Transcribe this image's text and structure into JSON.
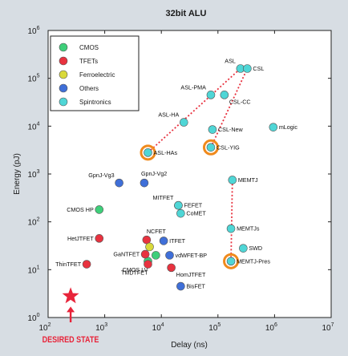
{
  "chart_data": {
    "type": "scatter",
    "title": "32bit ALU",
    "xlabel": "Delay (ns)",
    "ylabel": "Energy (pJ)",
    "x_scale": "log",
    "y_scale": "log",
    "xlim": [
      100,
      10000000
    ],
    "ylim": [
      1,
      1000000
    ],
    "x_ticks": [
      {
        "value": 100,
        "base": "10",
        "exp": "2"
      },
      {
        "value": 1000,
        "base": "10",
        "exp": "3"
      },
      {
        "value": 10000,
        "base": "10",
        "exp": "4"
      },
      {
        "value": 100000,
        "base": "10",
        "exp": "5"
      },
      {
        "value": 1000000,
        "base": "10",
        "exp": "6"
      },
      {
        "value": 10000000,
        "base": "10",
        "exp": "7"
      }
    ],
    "y_ticks": [
      {
        "value": 1,
        "base": "10",
        "exp": "0"
      },
      {
        "value": 10,
        "base": "10",
        "exp": "1"
      },
      {
        "value": 100,
        "base": "10",
        "exp": "2"
      },
      {
        "value": 1000,
        "base": "10",
        "exp": "3"
      },
      {
        "value": 10000,
        "base": "10",
        "exp": "4"
      },
      {
        "value": 100000,
        "base": "10",
        "exp": "5"
      },
      {
        "value": 1000000,
        "base": "10",
        "exp": "6"
      }
    ],
    "grid": false,
    "legend_position": "top-left",
    "series": [
      {
        "name": "CMOS",
        "color": "#3ecf7a"
      },
      {
        "name": "TFETs",
        "color": "#e8323f"
      },
      {
        "name": "Ferroelectric",
        "color": "#d9d93a"
      },
      {
        "name": "Others",
        "color": "#3f6fd8"
      },
      {
        "name": "Spintronics",
        "color": "#4fd6d6"
      }
    ],
    "points": [
      {
        "label": "CMOS HP",
        "series": "CMOS",
        "x": 800,
        "y": 180,
        "label_pos": "left"
      },
      {
        "label": "",
        "series": "CMOS",
        "x": 8000,
        "y": 20,
        "label_pos": "none"
      },
      {
        "label": "CMOS LV",
        "series": "CMOS",
        "x": 5800,
        "y": 15,
        "label_pos": "below-left"
      },
      {
        "label": "HetJTFET",
        "series": "TFETs",
        "x": 800,
        "y": 45,
        "label_pos": "left"
      },
      {
        "label": "ThinTFET",
        "series": "TFETs",
        "x": 480,
        "y": 13,
        "label_pos": "left"
      },
      {
        "label": "NCFET",
        "series": "TFETs",
        "x": 5500,
        "y": 42,
        "label_pos": "top-center"
      },
      {
        "label": "GaNTFET",
        "series": "TFETs",
        "x": 5200,
        "y": 21,
        "label_pos": "left"
      },
      {
        "label": "TMDTFET",
        "series": "TFETs",
        "x": 5800,
        "y": 13,
        "label_pos": "below-left"
      },
      {
        "label": "HomJTFET",
        "series": "TFETs",
        "x": 15000,
        "y": 11,
        "label_pos": "right-below"
      },
      {
        "label": "MITFET",
        "series": "Ferroelectric",
        "x": 20000,
        "y": 220,
        "label_pos": "top-left"
      },
      {
        "label": "",
        "series": "Ferroelectric",
        "x": 6200,
        "y": 30,
        "label_pos": "none"
      },
      {
        "label": "GpnJ-Vg3",
        "series": "Others",
        "x": 1800,
        "y": 650,
        "label_pos": "top-left"
      },
      {
        "label": "GpnJ-Vg2",
        "series": "Others",
        "x": 5000,
        "y": 650,
        "label_pos": "top-right"
      },
      {
        "label": "ITFET",
        "series": "Others",
        "x": 11000,
        "y": 40,
        "label_pos": "right"
      },
      {
        "label": "vdWFET-BP",
        "series": "Others",
        "x": 14000,
        "y": 20,
        "label_pos": "right"
      },
      {
        "label": "BisFET",
        "series": "Others",
        "x": 22000,
        "y": 4.5,
        "label_pos": "right"
      },
      {
        "label": "FEFET",
        "series": "Spintronics",
        "x": 20000,
        "y": 220,
        "label_pos": "right"
      },
      {
        "label": "CoMET",
        "series": "Spintronics",
        "x": 22000,
        "y": 150,
        "label_pos": "right"
      },
      {
        "label": "ASL",
        "series": "Spintronics",
        "x": 250000,
        "y": 160000,
        "label_pos": "top-left"
      },
      {
        "label": "CSL",
        "series": "Spintronics",
        "x": 330000,
        "y": 160000,
        "label_pos": "right"
      },
      {
        "label": "ASL-PMA",
        "series": "Spintronics",
        "x": 75000,
        "y": 45000,
        "label_pos": "top-left"
      },
      {
        "label": "CSL-CC",
        "series": "Spintronics",
        "x": 130000,
        "y": 45000,
        "label_pos": "right-below"
      },
      {
        "label": "ASL-HA",
        "series": "Spintronics",
        "x": 25000,
        "y": 12000,
        "label_pos": "top-left"
      },
      {
        "label": "CSL-New",
        "series": "Spintronics",
        "x": 80000,
        "y": 8500,
        "label_pos": "right"
      },
      {
        "label": "CSL-YIG",
        "series": "Spintronics",
        "x": 75000,
        "y": 3600,
        "label_pos": "right",
        "highlight": true
      },
      {
        "label": "ASL-HAs",
        "series": "Spintronics",
        "x": 5800,
        "y": 2800,
        "label_pos": "right",
        "highlight": true
      },
      {
        "label": "mLogic",
        "series": "Spintronics",
        "x": 950000,
        "y": 9500,
        "label_pos": "right"
      },
      {
        "label": "MEMTJ",
        "series": "Spintronics",
        "x": 180000,
        "y": 750,
        "label_pos": "right"
      },
      {
        "label": "MEMTJs",
        "series": "Spintronics",
        "x": 170000,
        "y": 72,
        "label_pos": "right"
      },
      {
        "label": "SWD",
        "series": "Spintronics",
        "x": 280000,
        "y": 28,
        "label_pos": "right"
      },
      {
        "label": "MEMTJ-Pres",
        "series": "Spintronics",
        "x": 170000,
        "y": 15,
        "label_pos": "right",
        "highlight": true
      }
    ],
    "trend_lines": [
      {
        "from": "ASL-HAs",
        "to": "ASL"
      },
      {
        "from": "CSL-YIG",
        "to": "CSL"
      },
      {
        "from": "MEMTJ-Pres",
        "to": "MEMTJ"
      }
    ],
    "target": {
      "label": "DESIRED STATE",
      "x": 250,
      "y": 2.8,
      "color": "#e8243a"
    },
    "highlight_color": "#f08a1c"
  }
}
